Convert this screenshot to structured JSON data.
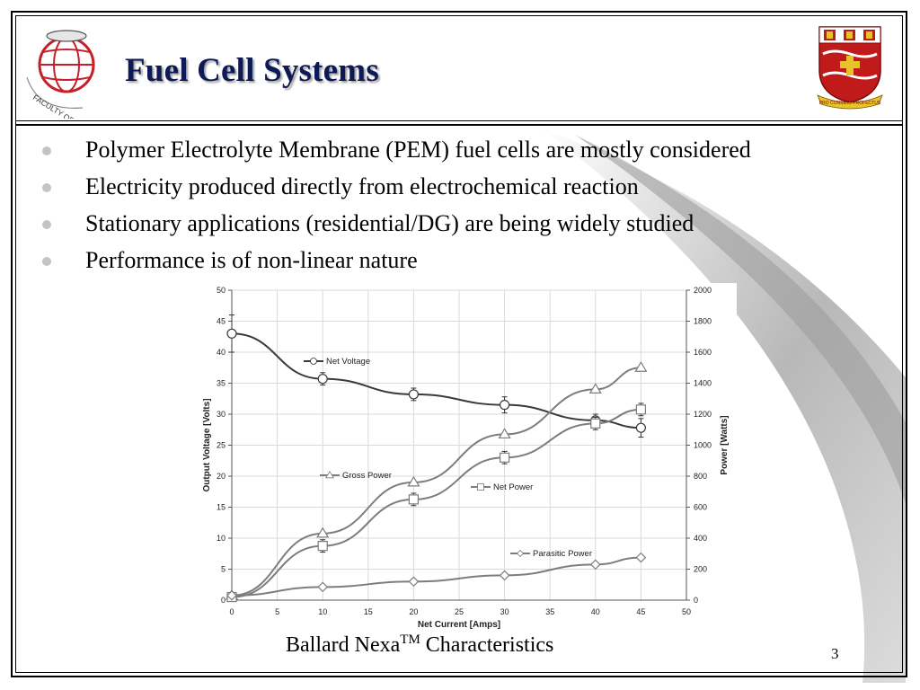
{
  "slide": {
    "title": "Fuel Cell Systems",
    "page_number": "3",
    "caption": {
      "main": "Ballard Nexa",
      "sup": "TM",
      "rest": " Characteristics"
    },
    "logo_text": "FACULTY OF ENGINEERING & APPLIED SCIENCE",
    "crest_motto": "PRO CONSILIO PROFECTUS"
  },
  "bullets": [
    "Polymer Electrolyte Membrane (PEM) fuel cells are mostly considered",
    "Electricity produced directly from electrochemical reaction",
    "Stationary applications (residential/DG) are being widely studied",
    "Performance is of non-linear nature"
  ],
  "colors": {
    "title": "#0d1a55",
    "bullet_dot": "#c4c4c4",
    "net_voltage": "#3a3a3a",
    "power_lines": "#7d7d7d",
    "grid": "#d9d9d9",
    "crest_red": "#c01a1a",
    "crest_gold": "#e8c22a",
    "logo_red": "#c5202a"
  },
  "icons": {
    "logo_left": "engineering-globe-logo-icon",
    "crest": "university-crest-icon"
  },
  "chart_data": {
    "type": "line",
    "title": "",
    "xlabel": "Net Current [Amps]",
    "ylabel_left": "Output Voltage [Volts]",
    "ylabel_right": "Power [Watts]",
    "xlim": [
      0,
      50
    ],
    "ylim_left": [
      0,
      50
    ],
    "ylim_right": [
      0,
      2000
    ],
    "x_ticks": [
      "0",
      "5",
      "10",
      "15",
      "20",
      "25",
      "30",
      "35",
      "40",
      "45",
      "50"
    ],
    "y_ticks_left": [
      "0",
      "5",
      "10",
      "15",
      "20",
      "25",
      "30",
      "35",
      "40",
      "45",
      "50"
    ],
    "y_ticks_right": [
      "0",
      "200",
      "400",
      "600",
      "800",
      "1000",
      "1200",
      "1400",
      "1600",
      "1800",
      "2000"
    ],
    "grid": true,
    "series": [
      {
        "name": "Net Voltage",
        "axis": "left",
        "marker": "circle",
        "color": "#3a3a3a",
        "x": [
          0,
          10,
          20,
          30,
          40,
          45
        ],
        "y": [
          43,
          35.7,
          33.2,
          31.5,
          29,
          27.8
        ],
        "errors": [
          3,
          1,
          1,
          1.3,
          1,
          1.5
        ]
      },
      {
        "name": "Gross Power",
        "axis": "right",
        "marker": "triangle",
        "color": "#7d7d7d",
        "x": [
          0,
          10,
          20,
          30,
          40,
          45
        ],
        "y": [
          30,
          430,
          760,
          1070,
          1360,
          1500
        ],
        "errors": []
      },
      {
        "name": "Net Power",
        "axis": "right",
        "marker": "square",
        "color": "#7d7d7d",
        "x": [
          0,
          10,
          20,
          30,
          40,
          45
        ],
        "y": [
          20,
          350,
          650,
          920,
          1140,
          1230
        ],
        "errors": [
          0,
          40,
          40,
          40,
          40,
          40
        ]
      },
      {
        "name": "Parasitic Power",
        "axis": "right",
        "marker": "diamond",
        "color": "#7d7d7d",
        "x": [
          0,
          10,
          20,
          30,
          40,
          45
        ],
        "y": [
          30,
          85,
          120,
          160,
          230,
          275
        ],
        "errors": []
      }
    ],
    "legend_placement": "inline-labels"
  }
}
